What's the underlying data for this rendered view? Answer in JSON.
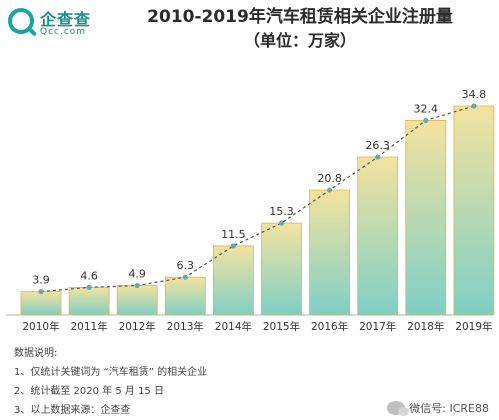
{
  "logo": {
    "name": "企查查",
    "domain": "Qcc.com"
  },
  "title": "2010-2019年汽车租赁相关企业注册量",
  "subtitle": "（单位：万家）",
  "chart_data": {
    "type": "bar",
    "title": "2010-2019年汽车租赁相关企业注册量",
    "unit": "（单位：万家）",
    "categories": [
      "2010年",
      "2011年",
      "2012年",
      "2013年",
      "2014年",
      "2015年",
      "2016年",
      "2017年",
      "2018年",
      "2019年"
    ],
    "values": [
      3.9,
      4.6,
      4.9,
      6.3,
      11.5,
      15.3,
      20.8,
      26.3,
      32.4,
      34.8
    ],
    "value_labels": [
      "3.9",
      "4.6",
      "4.9",
      "6.3",
      "11.5",
      "15.3",
      "20.8",
      "26.3",
      "32.4",
      "34.8"
    ],
    "overlay": "dashed-line-with-markers",
    "ylim": [
      0,
      36
    ],
    "grid": false,
    "colors": {
      "bar_top": "#f4e3a0",
      "bar_bottom": "#7fcfc5",
      "bar_stroke": "#e0b54a",
      "line": "#555555",
      "marker": "#6aa8b0"
    }
  },
  "notes": {
    "heading": "数据说明:",
    "items": [
      "1、仅统计关键词为 “汽车租赁” 的相关企业",
      "2、统计截至 2020 年 5 月 15 日",
      "3、以上数据来源：企查查"
    ]
  },
  "watermark": "微信号: ICRE88"
}
